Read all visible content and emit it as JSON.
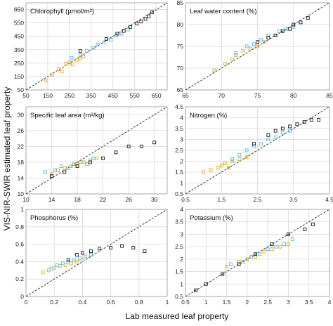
{
  "figure": {
    "ylabel": "VIS-NIR-SWIR estimated leaf property",
    "xlabel": "Lab measured leaf property"
  },
  "colors": {
    "orange": "#e8a628",
    "blue": "#5bb8e8",
    "black": "#1a1a1a",
    "diagonal": "#333333",
    "gridline": "#d9d9d9"
  },
  "chart_data": [
    {
      "type": "scatter",
      "title": "Chlorophyll (µmol/m²)",
      "xlim": [
        50,
        700
      ],
      "ylim": [
        50,
        700
      ],
      "xticks": [
        50,
        150,
        250,
        350,
        450,
        550,
        650
      ],
      "yticks": [
        50,
        150,
        250,
        350,
        450,
        550,
        650
      ],
      "diagonal": true,
      "groups": {
        "orange": {
          "x": [
            140,
            170,
            200,
            215,
            235,
            250,
            265,
            285,
            300,
            315
          ],
          "y": [
            120,
            165,
            205,
            190,
            245,
            255,
            240,
            275,
            285,
            300
          ]
        },
        "blue": {
          "x": [
            260,
            300,
            330,
            360,
            380,
            410,
            440,
            465,
            490,
            520
          ],
          "y": [
            290,
            310,
            340,
            365,
            390,
            405,
            425,
            455,
            470,
            500
          ]
        },
        "black": {
          "x": [
            300,
            420,
            470,
            500,
            530,
            560,
            580,
            600,
            615,
            630
          ],
          "y": [
            340,
            430,
            470,
            490,
            520,
            545,
            560,
            580,
            600,
            630
          ]
        }
      }
    },
    {
      "type": "scatter",
      "title": "Leaf water content (%)",
      "xlim": [
        65,
        85
      ],
      "ylim": [
        65,
        85
      ],
      "xticks": [
        65,
        70,
        75,
        80,
        85
      ],
      "yticks": [
        65,
        70,
        75,
        80,
        85
      ],
      "diagonal": true,
      "groups": {
        "orange": {
          "x": [
            69,
            70.5,
            71.5,
            72,
            73,
            74,
            75,
            76
          ],
          "y": [
            69.5,
            71,
            72,
            73,
            74,
            74.5,
            75,
            76
          ]
        },
        "blue": {
          "x": [
            72,
            73.5,
            74.5,
            75.5,
            76.5,
            77.5,
            78,
            79,
            80
          ],
          "y": [
            73.5,
            75,
            75.5,
            76.5,
            77.5,
            77.5,
            78.5,
            79,
            79.5
          ]
        },
        "black": {
          "x": [
            75,
            76.5,
            77.5,
            78.5,
            79.5,
            80,
            81,
            82
          ],
          "y": [
            76,
            77,
            77.5,
            78.5,
            79,
            80,
            80.5,
            81.5
          ]
        }
      }
    },
    {
      "type": "scatter",
      "title": "Specific leaf area (m²/kg)",
      "xlim": [
        10,
        32
      ],
      "ylim": [
        10,
        32
      ],
      "xticks": [
        10,
        14,
        18,
        22,
        26,
        30
      ],
      "yticks": [
        10,
        14,
        18,
        22,
        26,
        30
      ],
      "diagonal": true,
      "groups": {
        "orange": {
          "x": [
            14,
            15,
            16,
            17,
            18,
            19,
            20,
            21
          ],
          "y": [
            15,
            16,
            16.5,
            17,
            17.5,
            18,
            18.5,
            19
          ]
        },
        "blue": {
          "x": [
            13,
            14.5,
            15.5,
            16.5,
            17.5,
            18.5,
            19.5,
            20.5
          ],
          "y": [
            15.5,
            16,
            17,
            16.5,
            17.5,
            18,
            17.5,
            19
          ]
        },
        "black": {
          "x": [
            14,
            16,
            18,
            20,
            22,
            24,
            26,
            28,
            30
          ],
          "y": [
            14.5,
            15.5,
            17,
            18,
            19,
            20.5,
            22,
            22,
            23
          ]
        }
      }
    },
    {
      "type": "scatter",
      "title": "Nitrogen (%)",
      "xlim": [
        0.5,
        4.5
      ],
      "ylim": [
        0.5,
        4.5
      ],
      "xticks": [
        0.5,
        1.5,
        2.5,
        3.5,
        4.5
      ],
      "yticks": [
        0.5,
        1,
        1.5,
        2,
        2.5,
        3,
        3.5,
        4,
        4.5
      ],
      "diagonal": true,
      "groups": {
        "orange": {
          "x": [
            1.0,
            1.2,
            1.4,
            1.5,
            1.6,
            1.7,
            1.8,
            2.0,
            2.2
          ],
          "y": [
            1.5,
            1.6,
            1.7,
            1.8,
            1.9,
            1.7,
            2.0,
            2.1,
            2.2
          ]
        },
        "blue": {
          "x": [
            1.8,
            2.0,
            2.2,
            2.4,
            2.6,
            2.8,
            3.0,
            3.2,
            3.4
          ],
          "y": [
            2.1,
            2.3,
            2.5,
            2.7,
            2.8,
            3.0,
            3.1,
            3.3,
            3.4
          ]
        },
        "black": {
          "x": [
            2.4,
            2.8,
            3.0,
            3.2,
            3.4,
            3.6,
            3.8,
            4.0,
            4.2
          ],
          "y": [
            2.8,
            3.2,
            3.4,
            3.5,
            3.6,
            3.7,
            3.8,
            3.9,
            3.9
          ]
        }
      }
    },
    {
      "type": "scatter",
      "title": "Phosphorus (%)",
      "xlim": [
        0,
        1
      ],
      "ylim": [
        0,
        1
      ],
      "xticks": [
        0,
        0.2,
        0.4,
        0.6,
        0.8,
        1
      ],
      "yticks": [
        0,
        0.2,
        0.4,
        0.6,
        0.8,
        1
      ],
      "diagonal": true,
      "groups": {
        "orange": {
          "x": [
            0.12,
            0.16,
            0.2,
            0.24,
            0.28,
            0.32,
            0.36,
            0.4
          ],
          "y": [
            0.28,
            0.3,
            0.33,
            0.35,
            0.36,
            0.38,
            0.4,
            0.42
          ]
        },
        "blue": {
          "x": [
            0.18,
            0.22,
            0.26,
            0.3,
            0.34,
            0.38,
            0.42,
            0.46
          ],
          "y": [
            0.32,
            0.36,
            0.38,
            0.4,
            0.42,
            0.44,
            0.46,
            0.48
          ]
        },
        "black": {
          "x": [
            0.3,
            0.36,
            0.4,
            0.46,
            0.52,
            0.6,
            0.68,
            0.76,
            0.84
          ],
          "y": [
            0.42,
            0.48,
            0.5,
            0.52,
            0.55,
            0.56,
            0.58,
            0.56,
            0.52
          ]
        }
      }
    },
    {
      "type": "scatter",
      "title": "Potassium (%)",
      "xlim": [
        0.5,
        4
      ],
      "ylim": [
        0.5,
        4
      ],
      "xticks": [
        0.5,
        1,
        1.5,
        2,
        2.5,
        3,
        3.5,
        4
      ],
      "yticks": [
        0.5,
        1,
        1.5,
        2,
        2.5,
        3,
        3.5,
        4
      ],
      "diagonal": true,
      "groups": {
        "orange": {
          "x": [
            1.5,
            1.8,
            2.0,
            2.2,
            2.4,
            2.6,
            2.8,
            3.0
          ],
          "y": [
            1.7,
            1.9,
            2.0,
            2.1,
            2.3,
            2.4,
            2.5,
            2.6
          ]
        },
        "blue": {
          "x": [
            1.6,
            1.9,
            2.1,
            2.3,
            2.5,
            2.7,
            2.9,
            3.1
          ],
          "y": [
            1.8,
            1.9,
            2.1,
            2.2,
            2.4,
            2.5,
            2.6,
            2.8
          ]
        },
        "black": {
          "x": [
            0.75,
            1.0,
            1.4,
            1.8,
            2.2,
            2.6,
            3.0,
            3.4,
            3.6
          ],
          "y": [
            0.75,
            1.0,
            1.4,
            1.8,
            2.2,
            2.6,
            3.0,
            3.2,
            3.4
          ]
        }
      }
    }
  ]
}
